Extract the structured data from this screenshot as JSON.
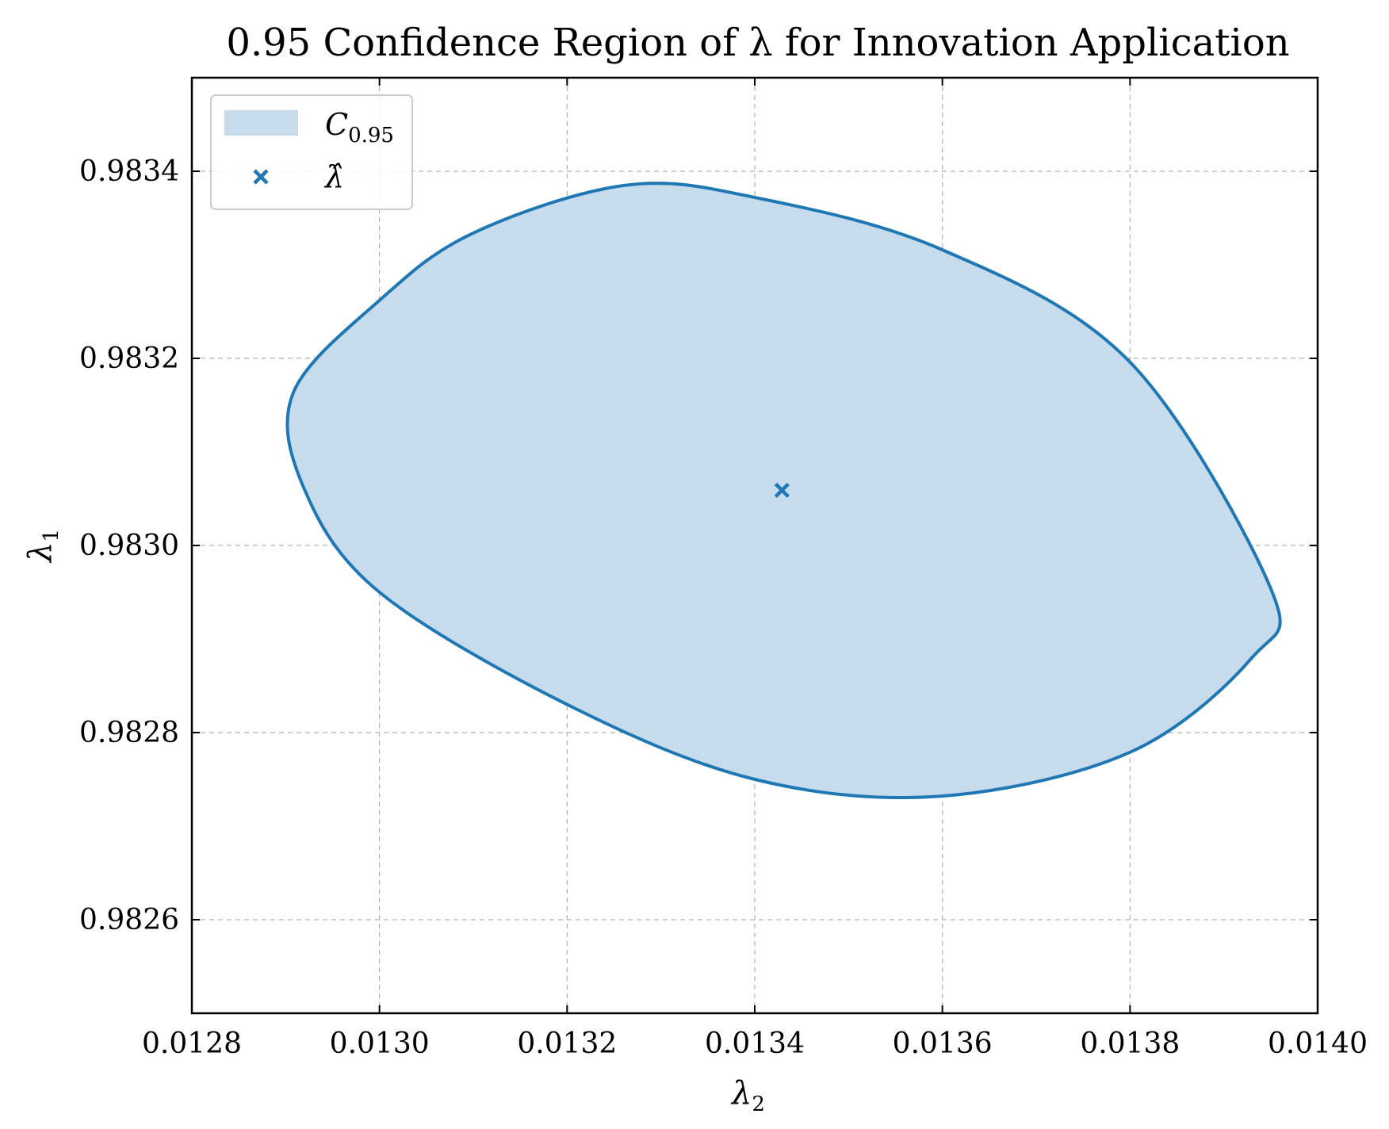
{
  "chart_data": {
    "type": "scatter",
    "title": "0.95 Confidence Region of λ for Innovation Application",
    "xlabel": "λ",
    "xlabel_sub": "2",
    "ylabel": "λ",
    "ylabel_sub": "1",
    "xlim": [
      0.0128,
      0.014
    ],
    "ylim": [
      0.9825,
      0.9835
    ],
    "xticks": [
      0.0128,
      0.013,
      0.0132,
      0.0134,
      0.0136,
      0.0138,
      0.014
    ],
    "xtick_labels": [
      "0.0128",
      "0.0130",
      "0.0132",
      "0.0134",
      "0.0136",
      "0.0138",
      "0.0140"
    ],
    "yticks": [
      0.9826,
      0.9828,
      0.983,
      0.9832,
      0.9834
    ],
    "ytick_labels": [
      "0.9826",
      "0.9828",
      "0.9830",
      "0.9832",
      "0.9834"
    ],
    "grid": true,
    "legend_position": "top-left",
    "series": [
      {
        "name": "C",
        "name_sub": "0.95",
        "kind": "confidence-ellipse",
        "center": [
          0.013429,
          0.983059
        ],
        "boundary_points": [
          [
            0.012908,
            0.983163
          ],
          [
            0.013,
            0.983262
          ],
          [
            0.0131,
            0.983334
          ],
          [
            0.013262,
            0.983385
          ],
          [
            0.0134,
            0.983372
          ],
          [
            0.0136,
            0.983316
          ],
          [
            0.0138,
            0.983196
          ],
          [
            0.01395,
            0.982954
          ],
          [
            0.01393,
            0.98288
          ],
          [
            0.0138,
            0.982779
          ],
          [
            0.013598,
            0.982732
          ],
          [
            0.0134,
            0.98275
          ],
          [
            0.0132,
            0.98283
          ],
          [
            0.013,
            0.98295
          ],
          [
            0.01292,
            0.98306
          ]
        ],
        "color": "#1f77b4",
        "fill_color": "#c6dbec"
      },
      {
        "name": "λ̂",
        "kind": "point-estimate",
        "x": [
          0.013429
        ],
        "y": [
          0.983059
        ],
        "marker": "x",
        "color": "#1f77b4"
      }
    ]
  }
}
